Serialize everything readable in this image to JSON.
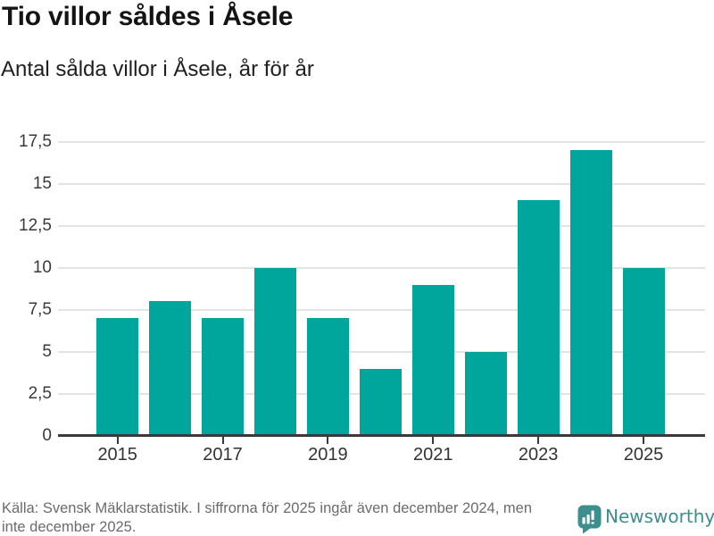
{
  "title": "Tio villor såldes i Åsele",
  "subtitle": "Antal sålda villor i Åsele, år för år",
  "chart_data": {
    "type": "bar",
    "categories": [
      2015,
      2016,
      2017,
      2018,
      2019,
      2020,
      2021,
      2022,
      2023,
      2024,
      2025
    ],
    "values": [
      7,
      8,
      7,
      10,
      7,
      4,
      9,
      5,
      14,
      17,
      10
    ],
    "title": "Tio villor såldes i Åsele",
    "subtitle": "Antal sålda villor i Åsele, år för år",
    "xlabel": "",
    "ylabel": "",
    "ylim": [
      0,
      17.5
    ],
    "ytick_step": 2.5,
    "ytick_labels": [
      "0",
      "2,5",
      "5",
      "7,5",
      "10",
      "12,5",
      "15",
      "17,5"
    ],
    "xtick_labels": [
      "2015",
      "2017",
      "2019",
      "2021",
      "2023",
      "2025"
    ],
    "grid": "horizontal",
    "legend": "none",
    "decimal_separator": ","
  },
  "footer": {
    "source_lines": [
      "Källa: Svensk Mäklarstatistik. I siffrorna för 2025 ingår även december 2024, men",
      "inte december 2025."
    ],
    "brand": "Newsworthy",
    "brand_icon": "newsworthy-speech-bubble-bar-chart-icon"
  },
  "colors": {
    "bar": "#00a59b",
    "brand": "#3d8f8d",
    "grid": "#e3e3e3",
    "axis": "#3a3a3a",
    "title_text": "#141414",
    "footer_text": "#6b6b6b"
  }
}
